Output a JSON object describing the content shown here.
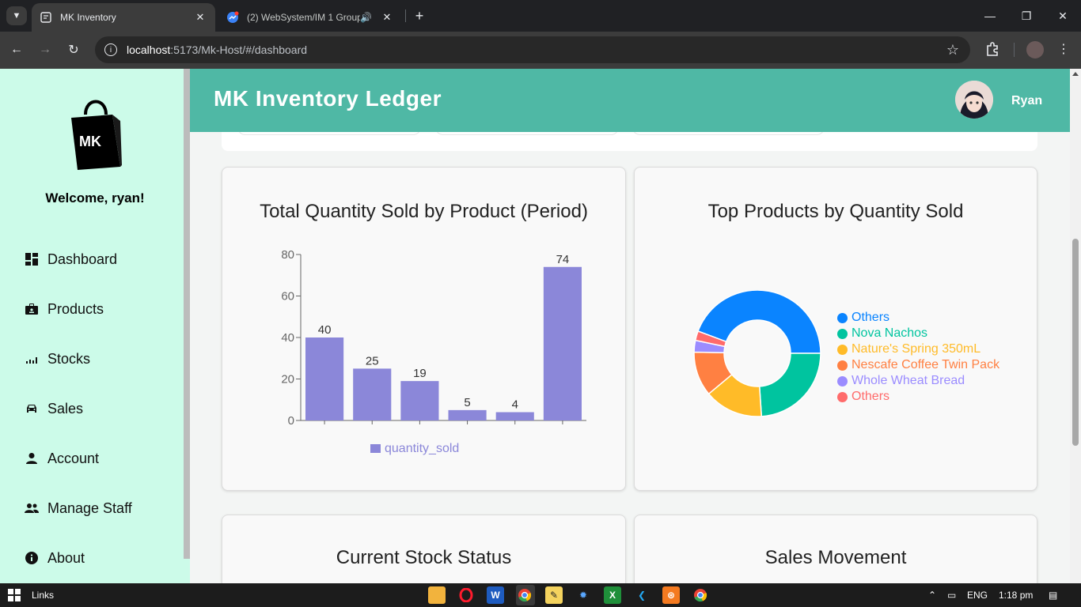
{
  "browser": {
    "tabs": [
      {
        "title": "MK Inventory",
        "active": true
      },
      {
        "title": "(2) WebSystem/IM 1 Group",
        "active": false
      }
    ],
    "url_host": "localhost",
    "url_path": ":5173/Mk-Host/#/dashboard"
  },
  "sidebar": {
    "logo_text": "MK",
    "welcome": "Welcome, ryan!",
    "items": [
      {
        "label": "Dashboard",
        "icon": "dashboard-icon"
      },
      {
        "label": "Products",
        "icon": "badge-icon"
      },
      {
        "label": "Stocks",
        "icon": "bar-chart-icon"
      },
      {
        "label": "Sales",
        "icon": "car-icon"
      },
      {
        "label": "Account",
        "icon": "person-icon"
      },
      {
        "label": "Manage Staff",
        "icon": "people-icon"
      },
      {
        "label": "About",
        "icon": "info-icon"
      }
    ]
  },
  "header": {
    "title": "MK Inventory Ledger",
    "username": "Ryan"
  },
  "cards": {
    "bar_title": "Total Quantity Sold by Product (Period)",
    "pie_title": "Top Products by Quantity Sold",
    "stock_title": "Current Stock Status",
    "movement_title": "Sales Movement"
  },
  "chart_data": [
    {
      "type": "bar",
      "title": "Total Quantity Sold by Product (Period)",
      "categories": [
        "",
        "",
        "",
        "",
        "",
        ""
      ],
      "series": [
        {
          "name": "quantity_sold",
          "values": [
            40,
            25,
            19,
            5,
            4,
            74
          ],
          "color": "#8b87d9"
        }
      ],
      "ylim": [
        0,
        80
      ],
      "yticks": [
        0,
        20,
        40,
        60,
        80
      ],
      "legend": "bottom"
    },
    {
      "type": "pie",
      "title": "Top Products by Quantity Sold",
      "labels": [
        "Others",
        "Nova Nachos",
        "Nature's Spring 350mL",
        "Nescafe Coffee Twin Pack",
        "Whole Wheat Bread",
        "Others"
      ],
      "values": [
        74,
        40,
        25,
        19,
        5,
        4
      ],
      "colors": [
        "#0a84ff",
        "#00c49f",
        "#ffbb28",
        "#ff8042",
        "#9b8cff",
        "#ff6b6b"
      ],
      "donut": true,
      "legend": "right"
    }
  ],
  "taskbar": {
    "links_label": "Links",
    "lang": "ENG",
    "time": "1:18 pm"
  }
}
